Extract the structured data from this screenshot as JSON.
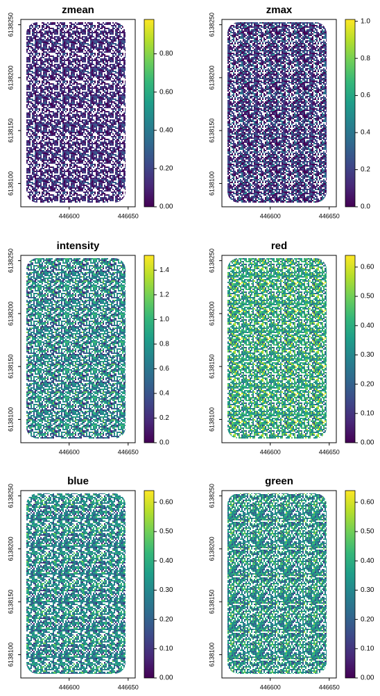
{
  "chart_data": [
    {
      "type": "raster",
      "title": "zmean",
      "colormap": "viridis",
      "xlim": [
        446559,
        446656
      ],
      "ylim": [
        6138078,
        6138255
      ],
      "xticks": [
        446600,
        446650
      ],
      "yticks": [
        6138100,
        6138150,
        6138200,
        6138250
      ],
      "zlim": [
        0,
        0.98
      ],
      "zticks": [
        {
          "value": 0,
          "label": "0.00"
        },
        {
          "value": 0.2,
          "label": "0.20"
        },
        {
          "value": 0.4,
          "label": "0.40"
        },
        {
          "value": 0.6,
          "label": "0.60"
        },
        {
          "value": 0.8,
          "label": "0.80"
        }
      ]
    },
    {
      "type": "raster",
      "title": "zmax",
      "colormap": "viridis",
      "xlim": [
        446559,
        446656
      ],
      "ylim": [
        6138078,
        6138255
      ],
      "xticks": [
        446600,
        446650
      ],
      "yticks": [
        6138100,
        6138150,
        6138200,
        6138250
      ],
      "zlim": [
        0,
        1.01
      ],
      "zticks": [
        {
          "value": 0,
          "label": "0.0"
        },
        0.2,
        0.4,
        0.6,
        0.8,
        {
          "value": 1,
          "label": "1.0"
        }
      ]
    },
    {
      "type": "raster",
      "title": "intensity",
      "colormap": "viridis",
      "xlim": [
        446559,
        446656
      ],
      "ylim": [
        6138078,
        6138255
      ],
      "xticks": [
        446600,
        446650
      ],
      "yticks": [
        6138100,
        6138150,
        6138200,
        6138250
      ],
      "zlim": [
        0,
        1.52
      ],
      "zticks": [
        {
          "value": 0,
          "label": "0.0"
        },
        0.2,
        0.4,
        0.6,
        0.8,
        {
          "value": 1,
          "label": "1.0"
        },
        1.2,
        1.4
      ]
    },
    {
      "type": "raster",
      "title": "red",
      "colormap": "viridis",
      "xlim": [
        446559,
        446656
      ],
      "ylim": [
        6138078,
        6138255
      ],
      "xticks": [
        446600,
        446650
      ],
      "yticks": [
        6138100,
        6138150,
        6138200,
        6138250
      ],
      "zlim": [
        0,
        0.64
      ],
      "zticks": [
        {
          "value": 0,
          "label": "0.00"
        },
        {
          "value": 0.1,
          "label": "0.10"
        },
        {
          "value": 0.2,
          "label": "0.20"
        },
        {
          "value": 0.3,
          "label": "0.30"
        },
        {
          "value": 0.4,
          "label": "0.40"
        },
        {
          "value": 0.5,
          "label": "0.50"
        },
        {
          "value": 0.6,
          "label": "0.60"
        }
      ]
    },
    {
      "type": "raster",
      "title": "blue",
      "colormap": "viridis",
      "xlim": [
        446559,
        446656
      ],
      "ylim": [
        6138078,
        6138255
      ],
      "xticks": [
        446600,
        446650
      ],
      "yticks": [
        6138100,
        6138150,
        6138200,
        6138250
      ],
      "zlim": [
        0,
        0.64
      ],
      "zticks": [
        {
          "value": 0,
          "label": "0.00"
        },
        {
          "value": 0.1,
          "label": "0.10"
        },
        {
          "value": 0.2,
          "label": "0.20"
        },
        {
          "value": 0.3,
          "label": "0.30"
        },
        {
          "value": 0.4,
          "label": "0.40"
        },
        {
          "value": 0.5,
          "label": "0.50"
        },
        {
          "value": 0.6,
          "label": "0.60"
        }
      ]
    },
    {
      "type": "raster",
      "title": "green",
      "colormap": "viridis",
      "xlim": [
        446559,
        446656
      ],
      "ylim": [
        6138078,
        6138255
      ],
      "xticks": [
        446600,
        446650
      ],
      "yticks": [
        6138100,
        6138150,
        6138200,
        6138250
      ],
      "zlim": [
        0,
        0.64
      ],
      "zticks": [
        {
          "value": 0,
          "label": "0.00"
        },
        {
          "value": 0.1,
          "label": "0.10"
        },
        {
          "value": 0.2,
          "label": "0.20"
        },
        {
          "value": 0.3,
          "label": "0.30"
        },
        {
          "value": 0.4,
          "label": "0.40"
        },
        {
          "value": 0.5,
          "label": "0.50"
        },
        {
          "value": 0.6,
          "label": "0.60"
        }
      ]
    }
  ]
}
